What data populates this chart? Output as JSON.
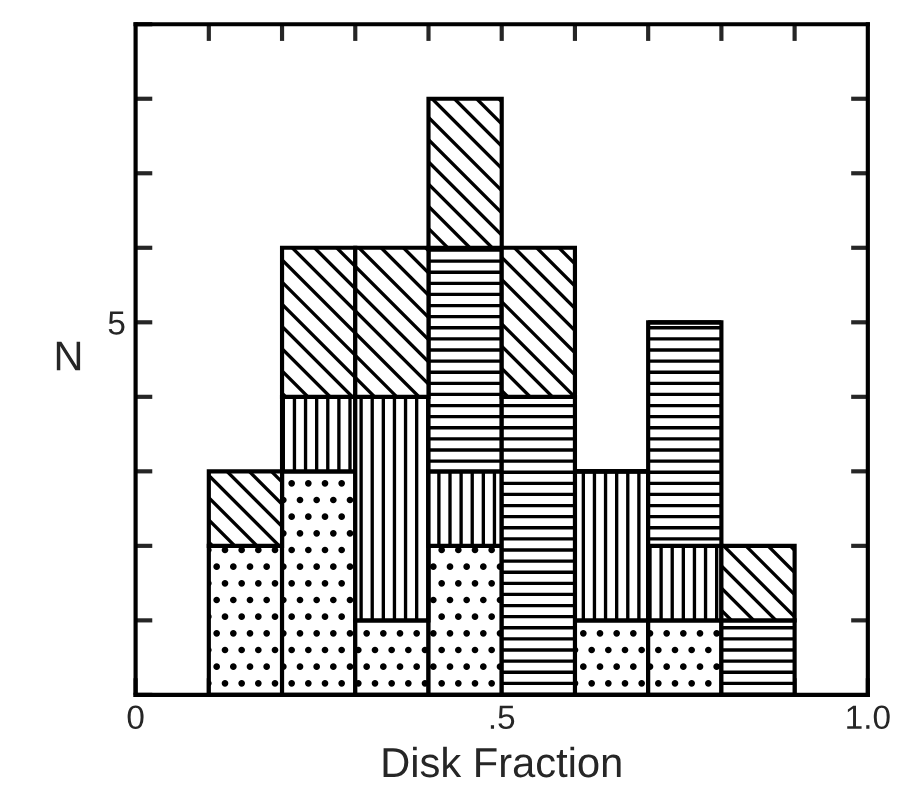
{
  "chart_data": {
    "type": "bar",
    "xlabel": "Disk Fraction",
    "ylabel": "N",
    "stacked": true,
    "x": [
      0.15,
      0.25,
      0.35,
      0.45,
      0.55,
      0.65,
      0.75,
      0.85
    ],
    "series": [
      {
        "color": "#000000",
        "values": [
          2,
          3,
          1,
          2,
          0,
          1,
          1,
          0
        ]
      },
      {
        "color": "#000000",
        "values": [
          0,
          1,
          3,
          1,
          0,
          2,
          1,
          0
        ]
      },
      {
        "color": "#000000",
        "values": [
          0,
          0,
          0,
          3,
          4,
          0,
          3,
          1
        ]
      },
      {
        "color": "#000000",
        "values": [
          1,
          2,
          2,
          2,
          2,
          0,
          0,
          1
        ]
      }
    ],
    "xlim": [
      0,
      1
    ],
    "ylim": [
      0,
      9
    ],
    "xticks": [
      0,
      {
        "value": 0.1,
        "label": null
      },
      {
        "value": 0.2,
        "label": null
      },
      {
        "value": 0.3,
        "label": null
      },
      {
        "value": 0.4,
        "label": null
      },
      {
        "value": 0.5,
        "label": ".5"
      },
      {
        "value": 0.6,
        "label": null
      },
      {
        "value": 0.7,
        "label": null
      },
      {
        "value": 0.8,
        "label": null
      },
      {
        "value": 0.9,
        "label": null
      },
      {
        "value": 1,
        "label": "1.0"
      }
    ],
    "yticks": [
      {
        "value": 0,
        "label": null
      },
      {
        "value": 1,
        "label": null
      },
      {
        "value": 2,
        "label": null
      },
      {
        "value": 3,
        "label": null
      },
      {
        "value": 4,
        "label": null
      },
      5,
      {
        "value": 6,
        "label": null
      },
      {
        "value": 7,
        "label": null
      },
      {
        "value": 8,
        "label": null
      },
      {
        "value": 9,
        "label": null
      }
    ],
    "grid": false,
    "legend": false
  }
}
